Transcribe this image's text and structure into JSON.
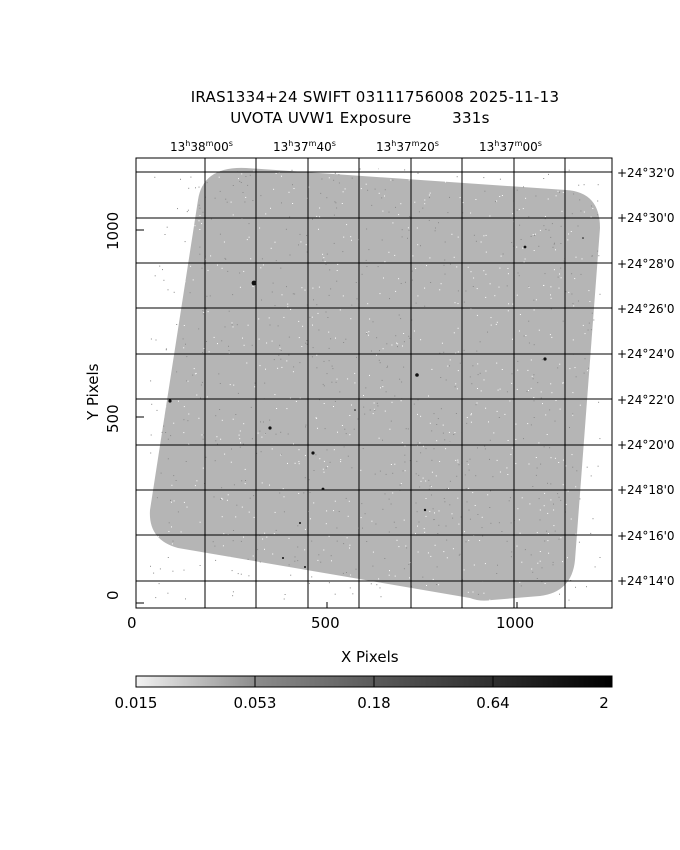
{
  "title": {
    "line1": "IRAS1334+24 SWIFT 03111756008 2025-11-13",
    "line2_left": "UVOTA UVW1 Exposure",
    "line2_right": "331s"
  },
  "axes": {
    "xlabel": "X Pixels",
    "ylabel": "Y Pixels",
    "x_ticks": [
      "0",
      "500",
      "1000"
    ],
    "y_ticks": [
      "0",
      "500",
      "1000"
    ],
    "ra_ticks": [
      {
        "h": "13",
        "m": "38",
        "s": "00"
      },
      {
        "h": "13",
        "m": "37",
        "s": "40"
      },
      {
        "h": "13",
        "m": "37",
        "s": "20"
      },
      {
        "h": "13",
        "m": "37",
        "s": "00"
      }
    ],
    "dec_ticks": [
      "+24°32'0",
      "+24°30'0",
      "+24°28'0",
      "+24°26'0",
      "+24°24'0",
      "+24°22'0",
      "+24°20'0",
      "+24°18'0",
      "+24°16'0",
      "+24°14'0"
    ]
  },
  "colorbar": {
    "ticks": [
      "0.015",
      "0.053",
      "0.18",
      "0.64",
      "2"
    ]
  },
  "colors": {
    "background": "#ffffff",
    "image_pixels": "#a8a8a8",
    "grid": "#000000"
  }
}
